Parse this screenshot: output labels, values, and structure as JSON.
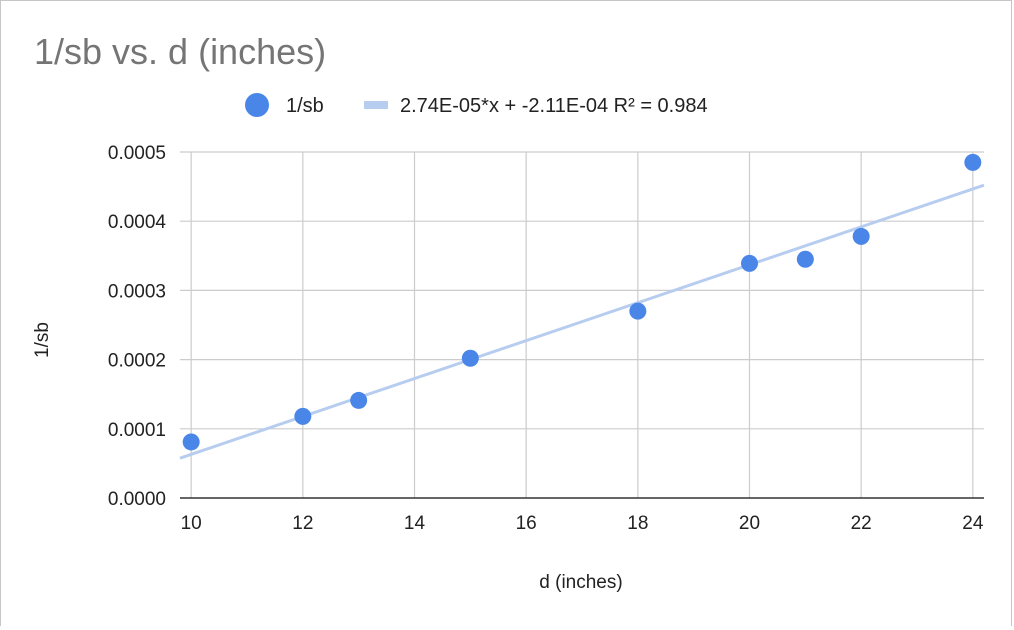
{
  "chart_data": {
    "type": "scatter",
    "title": "1/sb vs. d (inches)",
    "xlabel": "d (inches)",
    "ylabel": "1/sb",
    "xlim": [
      9.8,
      24.2
    ],
    "ylim": [
      0,
      0.0005
    ],
    "x_ticks": [
      "10",
      "12",
      "14",
      "16",
      "18",
      "20",
      "22",
      "24"
    ],
    "y_ticks": [
      "0.0000",
      "0.0001",
      "0.0002",
      "0.0003",
      "0.0004",
      "0.0005"
    ],
    "grid": true,
    "legend_position": "top",
    "series": [
      {
        "name": "1/sb",
        "color": "#4a86e8",
        "points": [
          {
            "x": 10,
            "y": 8.1e-05
          },
          {
            "x": 12,
            "y": 0.000118
          },
          {
            "x": 13,
            "y": 0.000141
          },
          {
            "x": 15,
            "y": 0.000202
          },
          {
            "x": 18,
            "y": 0.00027
          },
          {
            "x": 20,
            "y": 0.000339
          },
          {
            "x": 21,
            "y": 0.000345
          },
          {
            "x": 22,
            "y": 0.000378
          },
          {
            "x": 24,
            "y": 0.000485
          }
        ]
      }
    ],
    "trendline": {
      "label": "2.74E-05*x + -2.11E-04 R² = 0.984",
      "color": "#b7cdf0",
      "slope": 2.74e-05,
      "intercept": -0.000211
    }
  }
}
